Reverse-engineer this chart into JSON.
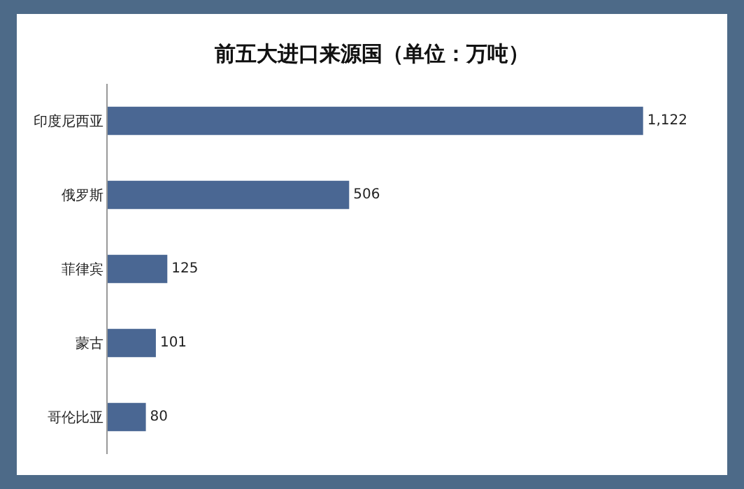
{
  "chart_data": {
    "type": "bar",
    "orientation": "horizontal",
    "title": "前五大进口来源国（单位：万吨）",
    "categories": [
      "印度尼西亚",
      "俄罗斯",
      "菲律宾",
      "蒙古",
      "哥伦比亚"
    ],
    "values": [
      1122,
      506,
      125,
      101,
      80
    ],
    "value_labels": [
      "1,122",
      "506",
      "125",
      "101",
      "80"
    ],
    "color": "#4a6793"
  }
}
